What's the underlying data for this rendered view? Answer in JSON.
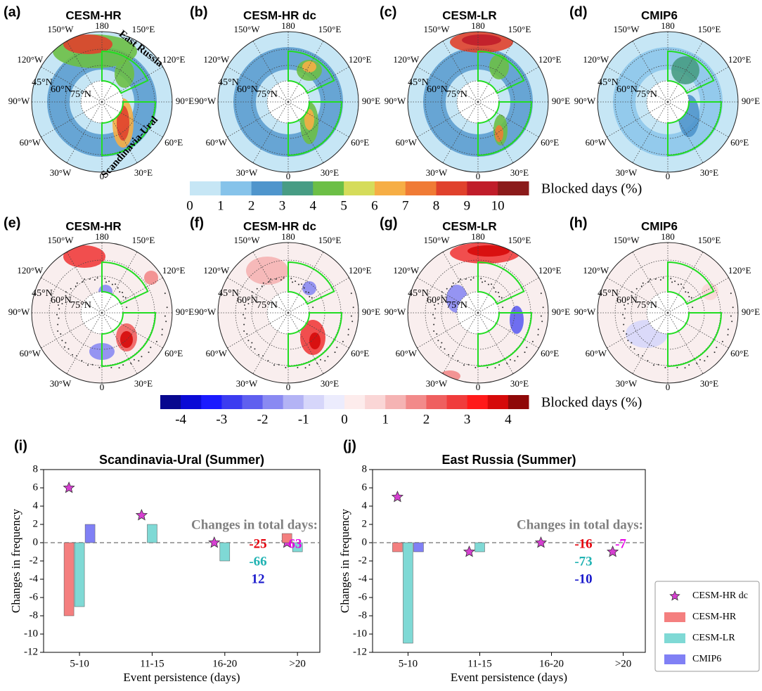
{
  "maps": {
    "panels": [
      {
        "label": "(a)",
        "title": "CESM-HR"
      },
      {
        "label": "(b)",
        "title": "CESM-HR dc"
      },
      {
        "label": "(c)",
        "title": "CESM-LR"
      },
      {
        "label": "(d)",
        "title": "CMIP6"
      },
      {
        "label": "(e)",
        "title": "CESM-HR"
      },
      {
        "label": "(f)",
        "title": "CESM-HR dc"
      },
      {
        "label": "(g)",
        "title": "CESM-LR"
      },
      {
        "label": "(h)",
        "title": "CMIP6"
      }
    ],
    "lon_labels": [
      "180",
      "150°E",
      "120°E",
      "90°E",
      "60°E",
      "30°E",
      "0",
      "30°W",
      "60°W",
      "90°W",
      "120°W",
      "150°W"
    ],
    "lat_labels": [
      "45°N",
      "60°N",
      "75°N"
    ],
    "regions": [
      "East Russia",
      "Scandinavia-Ural"
    ]
  },
  "colorbars": [
    {
      "label": "Blocked days (%)",
      "clim": [
        0,
        11
      ],
      "ticks": [
        0,
        1,
        2,
        3,
        4,
        5,
        6,
        7,
        8,
        9,
        10
      ],
      "colors": [
        "#c6e6f5",
        "#86c3ea",
        "#4f95cc",
        "#479c84",
        "#6cbf46",
        "#d5dc5a",
        "#f6ae45",
        "#f07b35",
        "#e0412c",
        "#c01d2a",
        "#8b1a1a"
      ]
    },
    {
      "label": "Blocked days (%)",
      "clim": [
        -4.5,
        4.5
      ],
      "ticks": [
        -4,
        -3,
        -2,
        -1,
        0,
        1,
        2,
        3,
        4
      ],
      "colors": [
        "#08088f",
        "#0a0ad6",
        "#1a1aff",
        "#3c3cf0",
        "#5f5fef",
        "#8a8af2",
        "#b3b3f5",
        "#d6d6fa",
        "#ececfd",
        "#fdecec",
        "#fad6d6",
        "#f5b3b3",
        "#f28a8a",
        "#ef5f5f",
        "#f03c3c",
        "#ff1a1a",
        "#d60a0a",
        "#8f0808"
      ]
    }
  ],
  "chart_data": [
    {
      "type": "bar",
      "label": "(i)",
      "title": "Scandinavia-Ural (Summer)",
      "xlabel": "Event persistence (days)",
      "ylabel": "Changes in frequency",
      "categories": [
        "5-10",
        "11-15",
        "16-20",
        ">20"
      ],
      "series": [
        {
          "name": "CESM-HR dc",
          "type": "scatter",
          "marker": "star",
          "color": "#d63fd1",
          "values": [
            6,
            3,
            0,
            0
          ]
        },
        {
          "name": "CESM-HR",
          "color": "#f47f7f",
          "values": [
            -8,
            0,
            0,
            1
          ]
        },
        {
          "name": "CESM-LR",
          "color": "#7fd9d5",
          "values": [
            -7,
            2,
            -2,
            -1
          ]
        },
        {
          "name": "CMIP6",
          "color": "#8080f5",
          "values": [
            2,
            0,
            0,
            0
          ]
        }
      ],
      "ylim": [
        -12,
        8
      ],
      "yticks": [
        -12,
        -10,
        -8,
        -6,
        -4,
        -2,
        0,
        2,
        4,
        6,
        8
      ],
      "reference_line": 0,
      "annotation": "Changes in total days:",
      "total_days": [
        63,
        -25,
        -66,
        12
      ],
      "total_days_colors": [
        "#e600e6",
        "#e6000b",
        "#21b3b3",
        "#1a1acc"
      ],
      "legend": false
    },
    {
      "type": "bar",
      "label": "(j)",
      "title": "East Russia (Summer)",
      "xlabel": "Event persistence (days)",
      "ylabel": "Changes in frequency",
      "categories": [
        "5-10",
        "11-15",
        "16-20",
        ">20"
      ],
      "series": [
        {
          "name": "CESM-HR dc",
          "type": "scatter",
          "marker": "star",
          "color": "#d63fd1",
          "values": [
            5,
            -1,
            0,
            -1
          ]
        },
        {
          "name": "CESM-HR",
          "color": "#f47f7f",
          "values": [
            -1,
            0,
            0,
            0
          ]
        },
        {
          "name": "CESM-LR",
          "color": "#7fd9d5",
          "values": [
            -11,
            -1,
            0,
            0
          ]
        },
        {
          "name": "CMIP6",
          "color": "#8080f5",
          "values": [
            -1,
            0,
            0,
            0
          ]
        }
      ],
      "ylim": [
        -12,
        8
      ],
      "yticks": [
        -12,
        -10,
        -8,
        -6,
        -4,
        -2,
        0,
        2,
        4,
        6,
        8
      ],
      "reference_line": 0,
      "annotation": "Changes in total days:",
      "total_days": [
        -7,
        -16,
        -73,
        -10
      ],
      "total_days_colors": [
        "#e600e6",
        "#e6000b",
        "#21b3b3",
        "#1a1acc"
      ],
      "legend": "right"
    }
  ]
}
